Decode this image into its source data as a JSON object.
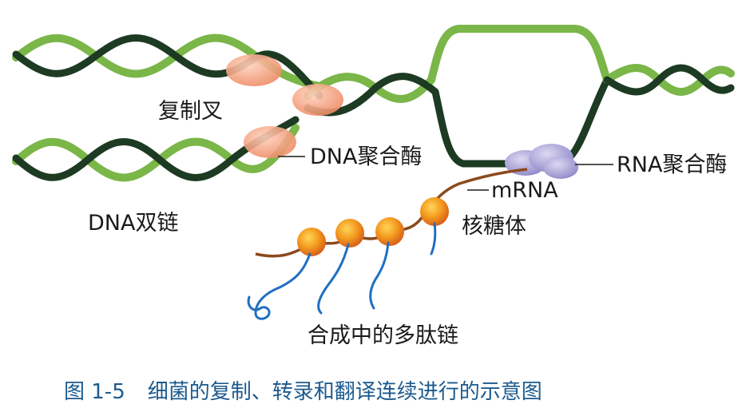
{
  "labels": {
    "replication_fork": "复制叉",
    "dna_polymerase": "DNA聚合酶",
    "dna_double_strand": "DNA双链",
    "rna_polymerase": "RNA聚合酶",
    "mrna": "mRNA",
    "ribosome": "核糖体",
    "polypeptide": "合成中的多肽链"
  },
  "caption": {
    "number": "图 1-5",
    "text": "细菌的复制、转录和翻译连续进行的示意图"
  },
  "colors": {
    "strand_light": "#7ab648",
    "strand_dark": "#1d3a22",
    "dna_polymerase": "#f2a07c",
    "rna_polymerase": "#a9a3d6",
    "ribosome": "#f39a1e",
    "mrna": "#8b4a1c",
    "peptide": "#1f6fc2",
    "caption": "#1c5a8f"
  }
}
